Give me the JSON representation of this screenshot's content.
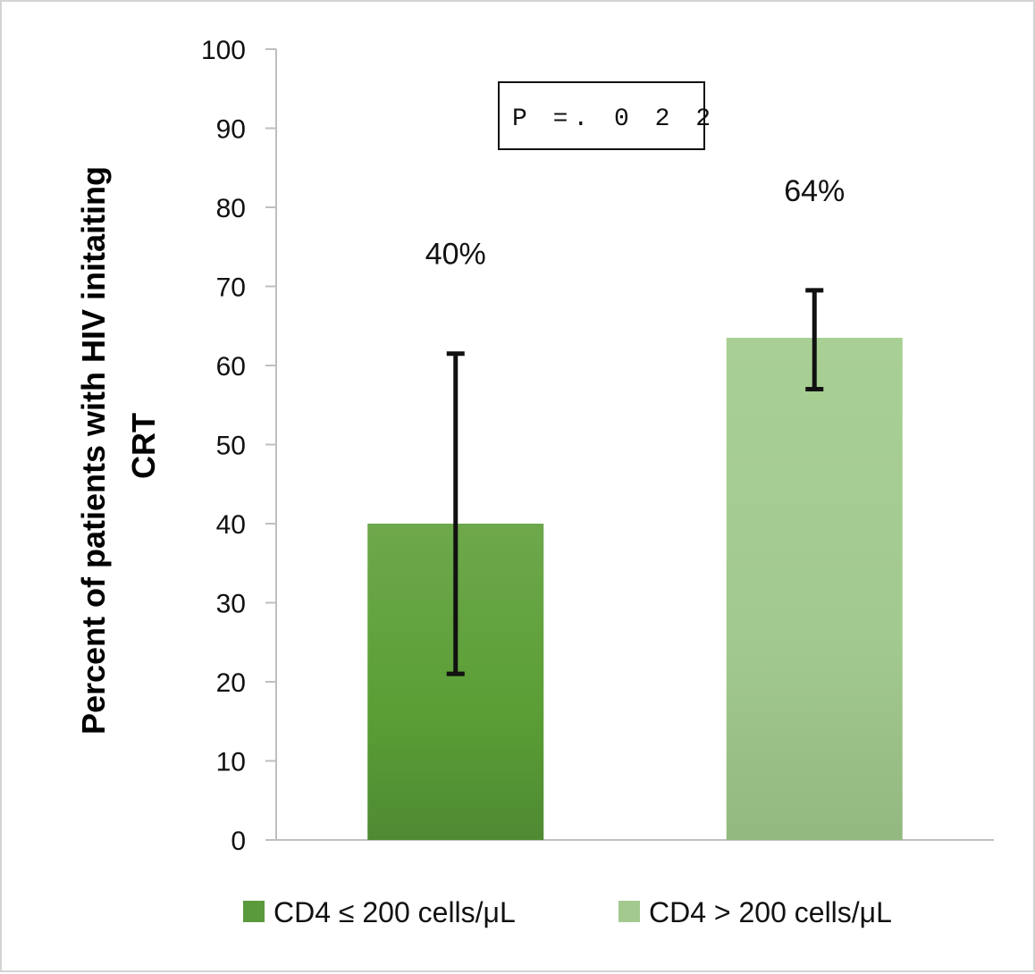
{
  "chart_data": {
    "type": "bar",
    "categories": [
      "CD4 ≤ 200 cells/μL",
      "CD4 > 200 cells/μL"
    ],
    "values": [
      40,
      63.5
    ],
    "error_bars": [
      {
        "low": 21,
        "high": 61.5
      },
      {
        "low": 57,
        "high": 69.5
      }
    ],
    "data_labels": [
      "40%",
      "64%"
    ],
    "colors": [
      "#5b9a3c",
      "#a3c98f"
    ],
    "ylabel_lines": [
      "Percent  of patients with HIV initaiting",
      "CRT"
    ],
    "ylim": [
      0,
      100
    ],
    "yticks": [
      0,
      10,
      20,
      30,
      40,
      50,
      60,
      70,
      80,
      90,
      100
    ],
    "annotation": "P =. 0 2 2",
    "legend": {
      "position": "bottom",
      "entries": [
        "CD4 ≤ 200 cells/μL",
        "CD4 > 200 cells/μL"
      ]
    },
    "grid": false
  }
}
